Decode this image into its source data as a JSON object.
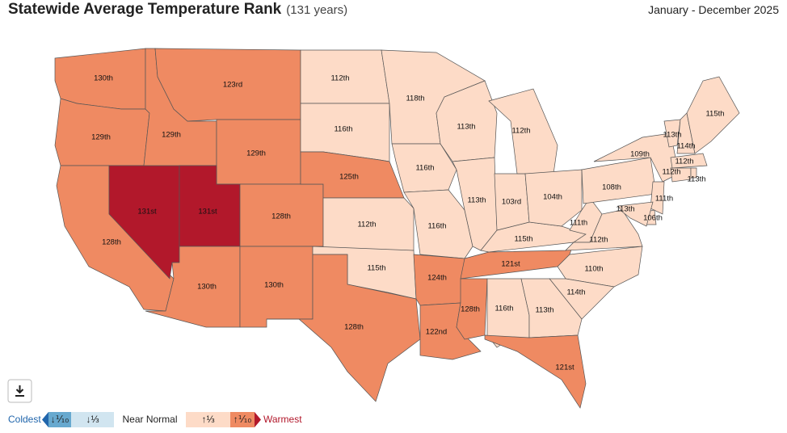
{
  "header": {
    "title": "Statewide Average Temperature Rank",
    "subtitle": "(131 years)",
    "period": "January - December 2025"
  },
  "legend": {
    "low": "Coldest",
    "high": "Warmest",
    "items": [
      {
        "label": "↓⅒",
        "color": "#67a9cf"
      },
      {
        "label": "↓⅓",
        "color": "#d1e5f0"
      },
      {
        "label": "Near Normal",
        "color": "#ffffff"
      },
      {
        "label": "↑⅓",
        "color": "#fddbc7"
      },
      {
        "label": "↑⅒",
        "color": "#ef8a62"
      }
    ]
  },
  "states": [
    {
      "label": "130th",
      "color": "#ef8a62"
    },
    {
      "label": "129th",
      "color": "#ef8a62"
    },
    {
      "label": "128th",
      "color": "#ef8a62"
    },
    {
      "label": "131st",
      "color": "#b2182b"
    },
    {
      "label": "129th",
      "color": "#ef8a62"
    },
    {
      "label": "123rd",
      "color": "#ef8a62"
    },
    {
      "label": "129th",
      "color": "#ef8a62"
    },
    {
      "label": "131st",
      "color": "#b2182b"
    },
    {
      "label": "128th",
      "color": "#ef8a62"
    },
    {
      "label": "130th",
      "color": "#ef8a62"
    },
    {
      "label": "130th",
      "color": "#ef8a62"
    },
    {
      "label": "112th",
      "color": "#fddbc7"
    },
    {
      "label": "116th",
      "color": "#fddbc7"
    },
    {
      "label": "125th",
      "color": "#ef8a62"
    },
    {
      "label": "112th",
      "color": "#fddbc7"
    },
    {
      "label": "115th",
      "color": "#fddbc7"
    },
    {
      "label": "128th",
      "color": "#ef8a62"
    },
    {
      "label": "118th",
      "color": "#fddbc7"
    },
    {
      "label": "116th",
      "color": "#fddbc7"
    },
    {
      "label": "116th",
      "color": "#fddbc7"
    },
    {
      "label": "124th",
      "color": "#ef8a62"
    },
    {
      "label": "122nd",
      "color": "#ef8a62"
    },
    {
      "label": "113th",
      "color": "#fddbc7"
    },
    {
      "label": "113th",
      "color": "#fddbc7"
    },
    {
      "label": "128th",
      "color": "#ef8a62"
    },
    {
      "label": "116th",
      "color": "#fddbc7"
    },
    {
      "label": "121st",
      "color": "#ef8a62"
    },
    {
      "label": "115th",
      "color": "#fddbc7"
    },
    {
      "label": "103rd",
      "color": "#fddbc7"
    },
    {
      "label": "112th",
      "color": "#fddbc7"
    },
    {
      "label": "104th",
      "color": "#fddbc7"
    },
    {
      "label": "111th",
      "color": "#fddbc7"
    },
    {
      "label": "112th",
      "color": "#fddbc7"
    },
    {
      "label": "110th",
      "color": "#fddbc7"
    },
    {
      "label": "114th",
      "color": "#fddbc7"
    },
    {
      "label": "113th",
      "color": "#fddbc7"
    },
    {
      "label": "121st",
      "color": "#ef8a62"
    },
    {
      "label": "108th",
      "color": "#fddbc7"
    },
    {
      "label": "109th",
      "color": "#fddbc7"
    },
    {
      "label": "113th",
      "color": "#fddbc7"
    },
    {
      "label": "114th",
      "color": "#fddbc7"
    },
    {
      "label": "115th",
      "color": "#fddbc7"
    },
    {
      "label": "112th",
      "color": "#fddbc7"
    },
    {
      "label": "112th",
      "color": "#fddbc7"
    },
    {
      "label": "113th",
      "color": "#fddbc7"
    },
    {
      "label": "111th",
      "color": "#fddbc7"
    },
    {
      "label": "106th",
      "color": "#fddbc7"
    },
    {
      "label": "113th",
      "color": "#fddbc7"
    }
  ]
}
